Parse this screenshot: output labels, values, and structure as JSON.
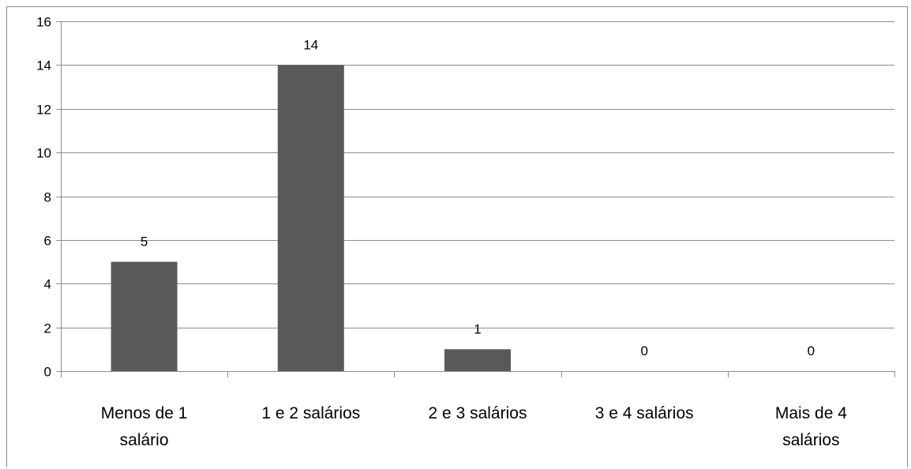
{
  "chart_data": {
    "type": "bar",
    "categories": [
      [
        "Menos de 1",
        "salário"
      ],
      [
        "1 e 2 salários"
      ],
      [
        "2 e 3  salários"
      ],
      [
        "3 e 4  salários"
      ],
      [
        "Mais de 4",
        "salários"
      ]
    ],
    "values": [
      5,
      14,
      1,
      0,
      0
    ],
    "data_labels": [
      "5",
      "14",
      "1",
      "0",
      "0"
    ],
    "title": "",
    "xlabel": "",
    "ylabel": "",
    "ylim": [
      0,
      16
    ],
    "yticks": [
      0,
      2,
      4,
      6,
      8,
      10,
      12,
      14,
      16
    ],
    "grid": true,
    "legend": "none",
    "bar_color": "#595959",
    "grid_color": "#8c8c8c"
  }
}
